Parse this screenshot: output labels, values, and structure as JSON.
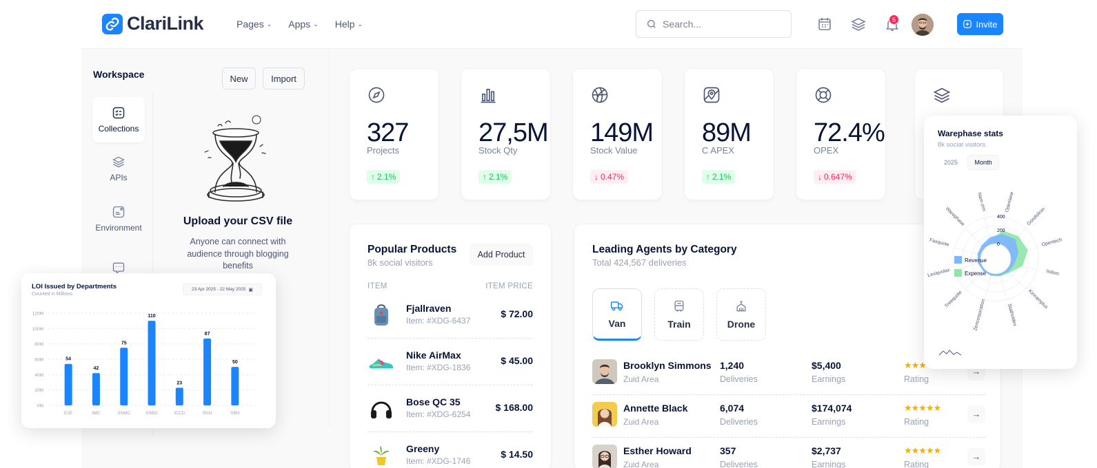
{
  "brand": {
    "name": "ClariLink",
    "accent": "#1b84ff"
  },
  "nav": [
    {
      "label": "Pages"
    },
    {
      "label": "Apps"
    },
    {
      "label": "Help"
    }
  ],
  "search": {
    "placeholder": "Search..."
  },
  "header_icons": [
    "calendar-icon",
    "layers-icon",
    "bell-icon"
  ],
  "notifications": {
    "count": "5"
  },
  "invite": {
    "label": "Invite"
  },
  "workspace": {
    "title": "Workspace",
    "new_label": "New",
    "import_label": "Import",
    "items": [
      {
        "label": "Collections",
        "icon": "checklist-icon",
        "active": true
      },
      {
        "label": "APIs",
        "icon": "layers-icon"
      },
      {
        "label": "Environment",
        "icon": "note-icon"
      },
      {
        "label": "",
        "icon": "chat-icon"
      }
    ],
    "upload_title": "Upload your CSV file",
    "upload_desc": "Anyone can connect with audience through blogging benefits"
  },
  "stats": [
    {
      "value": "327",
      "label": "Projects",
      "change": "2.1%",
      "direction": "up",
      "icon": "compass-icon"
    },
    {
      "value": "27,5M",
      "label": "Stock Qty",
      "change": "2.1%",
      "direction": "up",
      "icon": "bar-chart-icon"
    },
    {
      "value": "149M",
      "label": "Stock Value",
      "change": "0.47%",
      "direction": "down",
      "icon": "basketball-icon"
    },
    {
      "value": "89M",
      "label": "C APEX",
      "change": "2.1%",
      "direction": "up",
      "icon": "map-pin-icon"
    },
    {
      "value": "72.4%",
      "label": "OPEX",
      "change": "0.647%",
      "direction": "down",
      "icon": "lifebuoy-icon"
    }
  ],
  "popular_products": {
    "title": "Popular Products",
    "subtitle": "8k social visitors",
    "add_label": "Add Product",
    "col_item": "ITEM",
    "col_price": "ITEM PRICE",
    "rows": [
      {
        "name": "Fjallraven",
        "code": "Item: #XDG-6437",
        "price": "$ 72.00"
      },
      {
        "name": "Nike AirMax",
        "code": "Item: #XDG-1836",
        "price": "$ 45.00"
      },
      {
        "name": "Bose QC 35",
        "code": "Item: #XDG-6254",
        "price": "$ 168.00"
      },
      {
        "name": "Greeny",
        "code": "Item: #XDG-1746",
        "price": "$ 14.50"
      }
    ]
  },
  "leading_agents": {
    "title": "Leading Agents by Category",
    "subtitle": "Total 424,567 deliveries",
    "categories": [
      {
        "label": "Van",
        "active": true
      },
      {
        "label": "Train"
      },
      {
        "label": "Drone"
      }
    ],
    "rows": [
      {
        "name": "Brooklyn Simmons",
        "area": "Zuid Area",
        "deliveries": "1,240",
        "deliveries_label": "Deliveries",
        "earnings": "$5,400",
        "earnings_label": "Earnings",
        "rating": 3,
        "rating_label": "Rating"
      },
      {
        "name": "Annette Black",
        "area": "Zuid Area",
        "deliveries": "6,074",
        "deliveries_label": "Deliveries",
        "earnings": "$174,074",
        "earnings_label": "Earnings",
        "rating": 5,
        "rating_label": "Rating"
      },
      {
        "name": "Esther Howard",
        "area": "Zuid Area",
        "deliveries": "357",
        "deliveries_label": "Deliveries",
        "earnings": "$2,737",
        "earnings_label": "Earnings",
        "rating": 5,
        "rating_label": "Rating"
      }
    ]
  },
  "loi_chart": {
    "title": "LOI Issued by Departments",
    "subtitle": "Counted in Millions",
    "date_range": "23 Apr 2025 - 22 May 2025"
  },
  "warephase": {
    "title": "Warephase stats",
    "subtitle": "8k social visitors",
    "tab_year": "2025",
    "tab_month": "Month"
  },
  "chart_data": [
    {
      "type": "bar",
      "title": "LOI Issued by Departments",
      "subtitle": "Counted in Millions",
      "categories": [
        "E2E",
        "IMC",
        "SSMC",
        "SSBD",
        "ICCD",
        "PAN",
        "SBN"
      ],
      "values": [
        54,
        42,
        75,
        110,
        23,
        87,
        50
      ],
      "ylim": [
        0,
        120
      ],
      "yticks": [
        "0M",
        "20M",
        "40M",
        "60M",
        "80M",
        "100M",
        "120M"
      ],
      "color": "#1b84ff",
      "grid": true
    },
    {
      "type": "radar",
      "title": "Warephase stats",
      "categories": [
        "Openlane",
        "Goodsilron",
        "Opentech",
        "Isdom",
        "Kinnamplus",
        "Statholdex",
        "Zencorporation",
        "Treequote",
        "Lexiqvolax",
        "Faxquote",
        "Warephase",
        "Nam-zim"
      ],
      "rticks": [
        "0",
        "200",
        "400"
      ],
      "series": [
        {
          "name": "Revenue",
          "color": "#7eb6ff",
          "values": [
            150,
            180,
            120,
            60,
            40,
            30,
            30,
            30,
            40,
            50,
            60,
            100
          ]
        },
        {
          "name": "Expense",
          "color": "#8ee6a6",
          "values": [
            200,
            240,
            260,
            180,
            60,
            40,
            30,
            30,
            30,
            30,
            40,
            60
          ]
        }
      ],
      "legend": "center"
    }
  ]
}
